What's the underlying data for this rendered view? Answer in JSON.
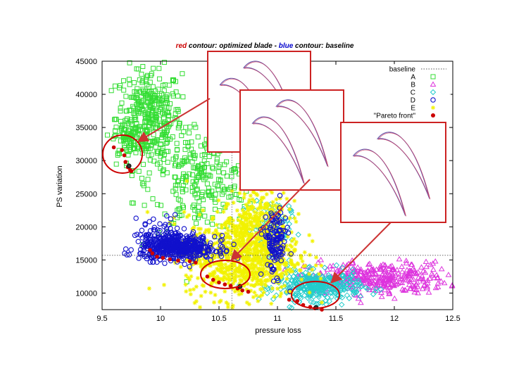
{
  "chart_data": {
    "type": "scatter",
    "title_parts": [
      {
        "text": "red",
        "color": "#cc0000"
      },
      {
        "text": " contour: optimized blade  -  ",
        "color": "#000000"
      },
      {
        "text": "blue",
        "color": "#0000cc"
      },
      {
        "text": " contour: baseline",
        "color": "#000000"
      }
    ],
    "xlabel": "pressure loss",
    "ylabel": "PS variation",
    "xlim": [
      9.5,
      12.5
    ],
    "ylim": [
      7500,
      45000
    ],
    "xticks": [
      "9.5",
      "10",
      "10.5",
      "11",
      "11.5",
      "12",
      "12.5"
    ],
    "yticks": [
      "10000",
      "15000",
      "20000",
      "25000",
      "30000",
      "35000",
      "40000",
      "45000"
    ],
    "baseline_point": {
      "x": 10.61,
      "y": 15700
    },
    "legend": [
      {
        "label": "baseline",
        "marker": "dotted-line",
        "color": "#555555"
      },
      {
        "label": "A",
        "marker": "square",
        "color": "#33dd33"
      },
      {
        "label": "B",
        "marker": "triangle",
        "color": "#dd33dd"
      },
      {
        "label": "C",
        "marker": "diamond",
        "color": "#22cccc"
      },
      {
        "label": "D",
        "marker": "circle",
        "color": "#1111cc"
      },
      {
        "label": "E",
        "marker": "star",
        "color": "#f2f200"
      },
      {
        "label": "\"Pareto front\"",
        "marker": "filled-circle",
        "color": "#cc0000"
      }
    ],
    "clusters": [
      {
        "series": "A",
        "cx": 9.9,
        "cy": 36500,
        "sx": 0.14,
        "sy": 3800,
        "n": 380
      },
      {
        "series": "A",
        "cx": 10.35,
        "cy": 27000,
        "sx": 0.22,
        "sy": 3800,
        "n": 260
      },
      {
        "series": "A",
        "cx": 9.72,
        "cy": 33500,
        "sx": 0.06,
        "sy": 1500,
        "n": 50
      },
      {
        "series": "B",
        "cx": 11.85,
        "cy": 12300,
        "sx": 0.3,
        "sy": 1200,
        "n": 340
      },
      {
        "series": "C",
        "cx": 11.35,
        "cy": 11000,
        "sx": 0.18,
        "sy": 1100,
        "n": 360
      },
      {
        "series": "C",
        "cx": 10.95,
        "cy": 19500,
        "sx": 0.08,
        "sy": 2500,
        "n": 120
      },
      {
        "series": "E",
        "cx": 10.7,
        "cy": 15500,
        "sx": 0.24,
        "sy": 3200,
        "n": 900
      },
      {
        "series": "E",
        "cx": 10.85,
        "cy": 21500,
        "sx": 0.12,
        "sy": 2800,
        "n": 220
      },
      {
        "series": "D",
        "cx": 10.15,
        "cy": 16800,
        "sx": 0.16,
        "sy": 900,
        "n": 500
      },
      {
        "series": "D",
        "cx": 10.98,
        "cy": 17800,
        "sx": 0.05,
        "sy": 2500,
        "n": 130
      },
      {
        "series": "D",
        "cx": 10.0,
        "cy": 19000,
        "sx": 0.12,
        "sy": 1200,
        "n": 60
      }
    ],
    "pareto_front": [
      [
        9.6,
        32000
      ],
      [
        9.67,
        31600
      ],
      [
        9.69,
        30800
      ],
      [
        9.7,
        29800
      ],
      [
        9.72,
        29000
      ],
      [
        9.74,
        28600
      ],
      [
        9.75,
        28400
      ],
      [
        9.91,
        16500
      ],
      [
        9.93,
        16000
      ],
      [
        9.97,
        15500
      ],
      [
        10.02,
        15300
      ],
      [
        10.08,
        15100
      ],
      [
        10.15,
        14900
      ],
      [
        10.25,
        14800
      ],
      [
        10.3,
        14600
      ],
      [
        10.4,
        12500
      ],
      [
        10.45,
        12000
      ],
      [
        10.5,
        11600
      ],
      [
        10.55,
        11300
      ],
      [
        10.6,
        11100
      ],
      [
        10.66,
        10700
      ],
      [
        10.7,
        10400
      ],
      [
        10.75,
        10200
      ],
      [
        11.1,
        9000
      ],
      [
        11.17,
        8800
      ],
      [
        11.22,
        8200
      ],
      [
        11.28,
        7900
      ],
      [
        11.32,
        7700
      ],
      [
        11.38,
        7500
      ]
    ],
    "pareto_highlight": [
      [
        9.73,
        29200
      ],
      [
        10.68,
        11000
      ],
      [
        11.33,
        7800
      ]
    ]
  }
}
